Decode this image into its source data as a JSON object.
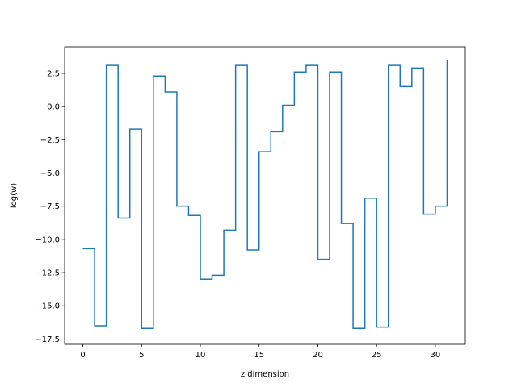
{
  "chart_data": {
    "type": "line",
    "drawstyle": "steps-post",
    "xlabel": "z dimension",
    "ylabel": "log(w)",
    "xlim": [
      -1.55,
      32.55
    ],
    "ylim": [
      -17.9,
      4.5
    ],
    "xticks": [
      0,
      5,
      10,
      15,
      20,
      25,
      30
    ],
    "yticks": [
      2.5,
      0.0,
      -2.5,
      -5.0,
      -7.5,
      -10.0,
      -12.5,
      -15.0,
      -17.5
    ],
    "ytick_labels": [
      "2.5",
      "0.0",
      "−2.5",
      "−5.0",
      "−7.5",
      "−10.0",
      "−12.5",
      "−15.0",
      "−17.5"
    ],
    "grid": false,
    "series": [
      {
        "color": "#1f77b4",
        "x": [
          0,
          1,
          2,
          3,
          4,
          5,
          6,
          7,
          8,
          9,
          10,
          11,
          12,
          13,
          14,
          15,
          16,
          17,
          18,
          19,
          20,
          21,
          22,
          23,
          24,
          25,
          26,
          27,
          28,
          29,
          30,
          31
        ],
        "values": [
          -10.7,
          -16.5,
          3.1,
          -8.4,
          -1.7,
          -16.7,
          2.3,
          1.1,
          -7.5,
          -8.2,
          -13.0,
          -12.7,
          -9.3,
          3.1,
          -10.8,
          -3.4,
          -1.9,
          0.1,
          2.6,
          3.1,
          -11.5,
          2.6,
          -8.8,
          -16.7,
          -6.9,
          -16.6,
          3.1,
          1.5,
          2.9,
          -8.1,
          -7.5,
          3.5
        ]
      }
    ]
  }
}
